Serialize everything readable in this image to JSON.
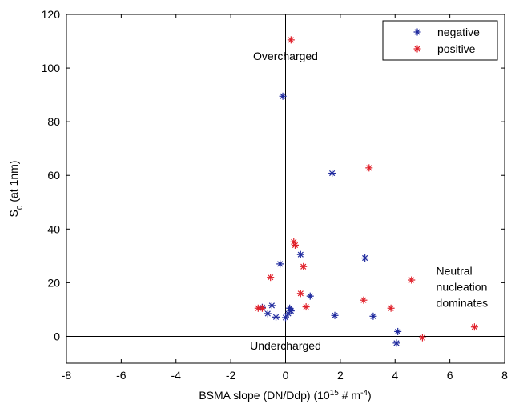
{
  "chart_data": {
    "type": "scatter",
    "title": "",
    "xlabel": "BSMA slope (DN/Ddp) (10",
    "xlabel_sup1": "15",
    "xlabel_mid": " # m",
    "xlabel_sup2": "-4",
    "xlabel_end": ")",
    "ylabel": "S",
    "ylabel_sub": "0",
    "ylabel_end": " (at 1nm)",
    "xlim": [
      -8,
      8
    ],
    "ylim": [
      -10,
      120
    ],
    "xticks": [
      -8,
      -6,
      -4,
      -2,
      0,
      2,
      4,
      6,
      8
    ],
    "yticks": [
      0,
      20,
      40,
      60,
      80,
      100,
      120
    ],
    "grid": false,
    "legend_position": "top-right",
    "reference_lines": {
      "x": 0,
      "y": 0
    },
    "annotations": [
      {
        "text": "Overcharged",
        "x": 0,
        "y": 103
      },
      {
        "text": "Undercharged",
        "x": 0,
        "y": -5
      },
      {
        "text": "Neutral",
        "x": 5.5,
        "y": 23
      },
      {
        "text": "nucleation",
        "x": 5.5,
        "y": 17
      },
      {
        "text": "dominates",
        "x": 5.5,
        "y": 11
      }
    ],
    "series": [
      {
        "name": "negative",
        "color": "#1f2a9e",
        "marker": "asterisk",
        "points": [
          [
            -0.1,
            89.5
          ],
          [
            1.7,
            60.8
          ],
          [
            2.9,
            29.2
          ],
          [
            0.55,
            30.5
          ],
          [
            -0.2,
            27.0
          ],
          [
            0.9,
            15.0
          ],
          [
            -0.85,
            10.8
          ],
          [
            -0.5,
            11.5
          ],
          [
            0.15,
            10.5
          ],
          [
            0.2,
            9.5
          ],
          [
            0.1,
            8.5
          ],
          [
            -0.65,
            8.5
          ],
          [
            -0.35,
            7.2
          ],
          [
            0.0,
            7.0
          ],
          [
            1.8,
            7.8
          ],
          [
            3.2,
            7.5
          ],
          [
            4.1,
            1.8
          ],
          [
            4.05,
            -2.5
          ]
        ]
      },
      {
        "name": "positive",
        "color": "#e0202a",
        "marker": "asterisk",
        "points": [
          [
            0.2,
            110.5
          ],
          [
            3.05,
            62.8
          ],
          [
            0.3,
            35.2
          ],
          [
            0.35,
            34.0
          ],
          [
            0.65,
            26.0
          ],
          [
            -0.55,
            22.0
          ],
          [
            4.6,
            21.0
          ],
          [
            0.55,
            16.0
          ],
          [
            2.85,
            13.5
          ],
          [
            0.75,
            11.0
          ],
          [
            3.85,
            10.5
          ],
          [
            -1.0,
            10.5
          ],
          [
            -0.85,
            10.5
          ],
          [
            5.0,
            -0.5
          ],
          [
            6.9,
            3.5
          ]
        ]
      }
    ]
  }
}
